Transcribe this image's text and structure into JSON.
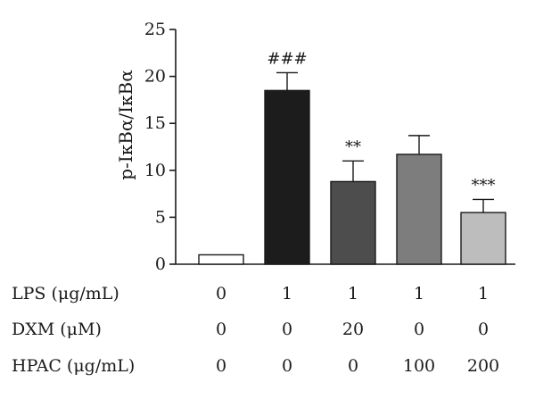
{
  "chart_data": {
    "type": "bar",
    "ylabel": "p-IκBα/IκBα",
    "ylim": [
      0,
      25
    ],
    "yticks": [
      "0",
      "5",
      "10",
      "15",
      "20",
      "25"
    ],
    "grid": false,
    "values": [
      1.0,
      18.5,
      8.8,
      11.7,
      5.5
    ],
    "errors": [
      0.0,
      1.9,
      2.2,
      2.0,
      1.4
    ],
    "bar_colors": [
      "#ffffff",
      "#1c1c1c",
      "#4d4d4d",
      "#7d7d7d",
      "#bdbdbd"
    ],
    "annotations": [
      "",
      "###",
      "**",
      "",
      "***"
    ],
    "conditions": [
      {
        "label": "LPS (μg/mL)",
        "values": [
          "0",
          "1",
          "1",
          "1",
          "1"
        ]
      },
      {
        "label": "DXM (μM)",
        "values": [
          "0",
          "0",
          "20",
          "0",
          "0"
        ]
      },
      {
        "label": "HPAC (μg/mL)",
        "values": [
          "0",
          "0",
          "0",
          "100",
          "200"
        ]
      }
    ]
  }
}
